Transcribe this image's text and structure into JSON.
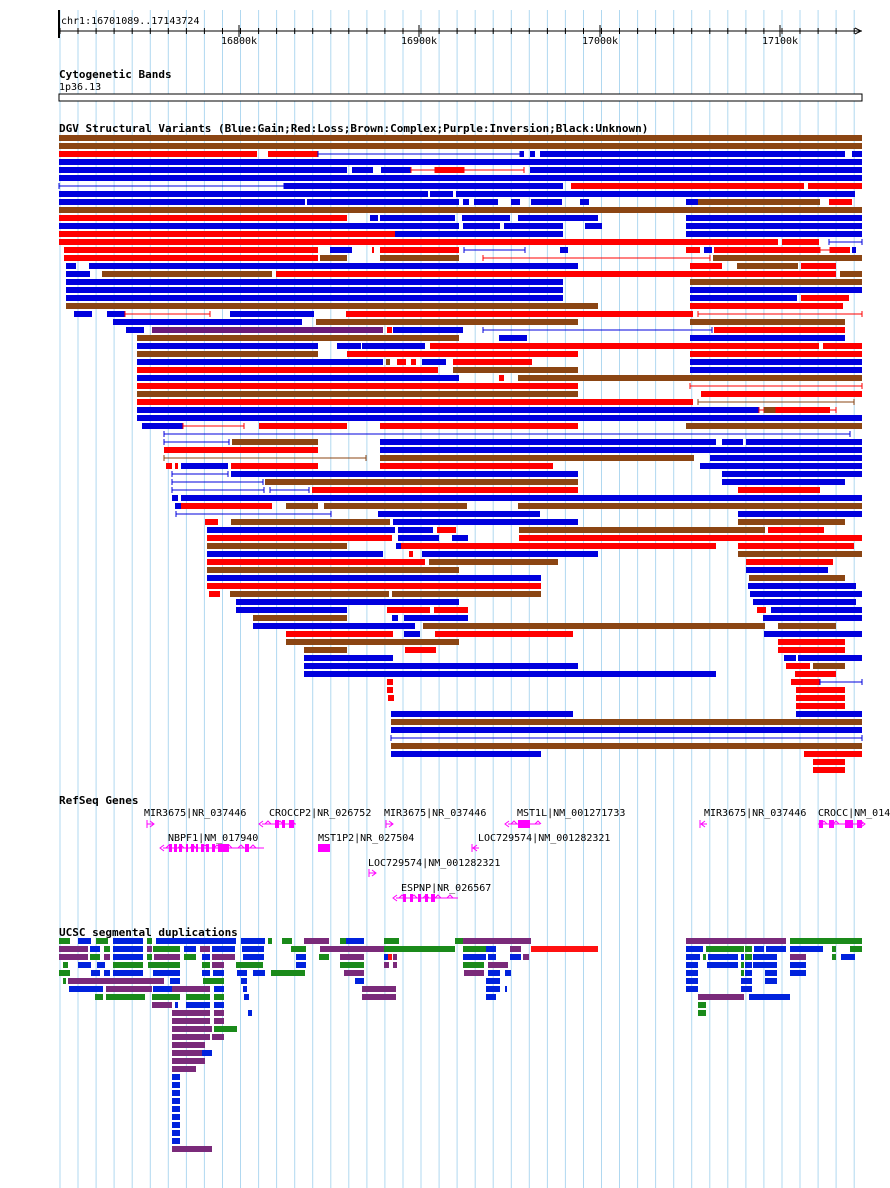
{
  "ruler": {
    "location_label": "chr1:16701089..17143724",
    "ticks": [
      {
        "label": "16800k",
        "pos": 16800000
      },
      {
        "label": "16900k",
        "pos": 16900000
      },
      {
        "label": "17000k",
        "pos": 17000000
      },
      {
        "label": "17100k",
        "pos": 17100000
      }
    ],
    "range_start": 16701089,
    "range_end": 17143724
  },
  "tracks": {
    "cytoband": {
      "title": "Cytogenetic Bands",
      "band_label": "1p36.13"
    },
    "dgv": {
      "title": "DGV Structural Variants (Blue:Gain;Red:Loss;Brown:Complex;Purple:Inversion;Black:Unknown)"
    },
    "refseq": {
      "title": "RefSeq Genes"
    },
    "segdup": {
      "title": "UCSC segmental duplications"
    }
  },
  "colors": {
    "gain": "#0000dd",
    "loss": "#ff0000",
    "complex": "#8b4513",
    "inversion": "#6a1b7a",
    "gene": "#ff00ff",
    "segdup_green": "#1a8a1a",
    "segdup_blue": "#0022dd",
    "segdup_purple": "#7a2a7a",
    "segdup_red": "#ff1111",
    "grid": "#b0d8f0"
  },
  "genes": [
    {
      "label": "MIR3675|NR_037446",
      "strand": "+"
    },
    {
      "label": "CROCCP2|NR_026752",
      "strand": "-"
    },
    {
      "label": "MIR3675|NR_037446",
      "strand": "+"
    },
    {
      "label": "MST1L|NM_001271733",
      "strand": "-"
    },
    {
      "label": "MIR3675|NR_037446",
      "strand": "-"
    },
    {
      "label": "CROCC|NM_014",
      "strand": "+"
    },
    {
      "label": "NBPF1|NM_017940",
      "strand": "-"
    },
    {
      "label": "MST1P2|NR_027504",
      "strand": "+"
    },
    {
      "label": "LOC729574|NM_001282321",
      "strand": "-"
    },
    {
      "label": "LOC729574|NM_001282321",
      "strand": "+"
    },
    {
      "label": "ESPNP|NR_026567",
      "strand": "-"
    }
  ]
}
